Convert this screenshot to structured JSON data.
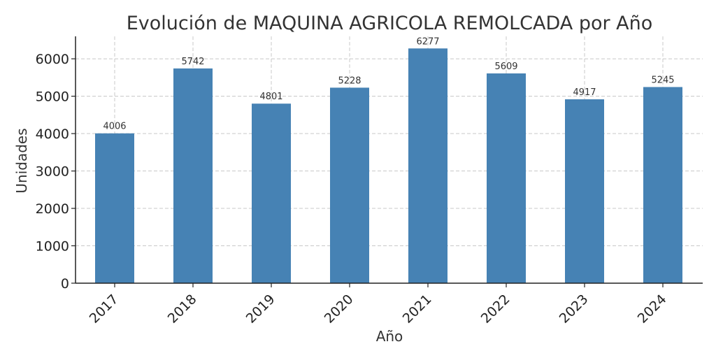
{
  "chart_data": {
    "type": "bar",
    "title": "Evolución de MAQUINA AGRICOLA REMOLCADA por Año",
    "xlabel": "Año",
    "ylabel": "Unidades",
    "categories": [
      "2017",
      "2018",
      "2019",
      "2020",
      "2021",
      "2022",
      "2023",
      "2024"
    ],
    "values": [
      4006,
      5742,
      4801,
      5228,
      6277,
      5609,
      4917,
      5245
    ],
    "ylim": [
      0,
      6600
    ],
    "yticks": [
      0,
      1000,
      2000,
      3000,
      4000,
      5000,
      6000
    ],
    "grid": true,
    "data_labels": true,
    "bar_color": "#4682b4"
  }
}
